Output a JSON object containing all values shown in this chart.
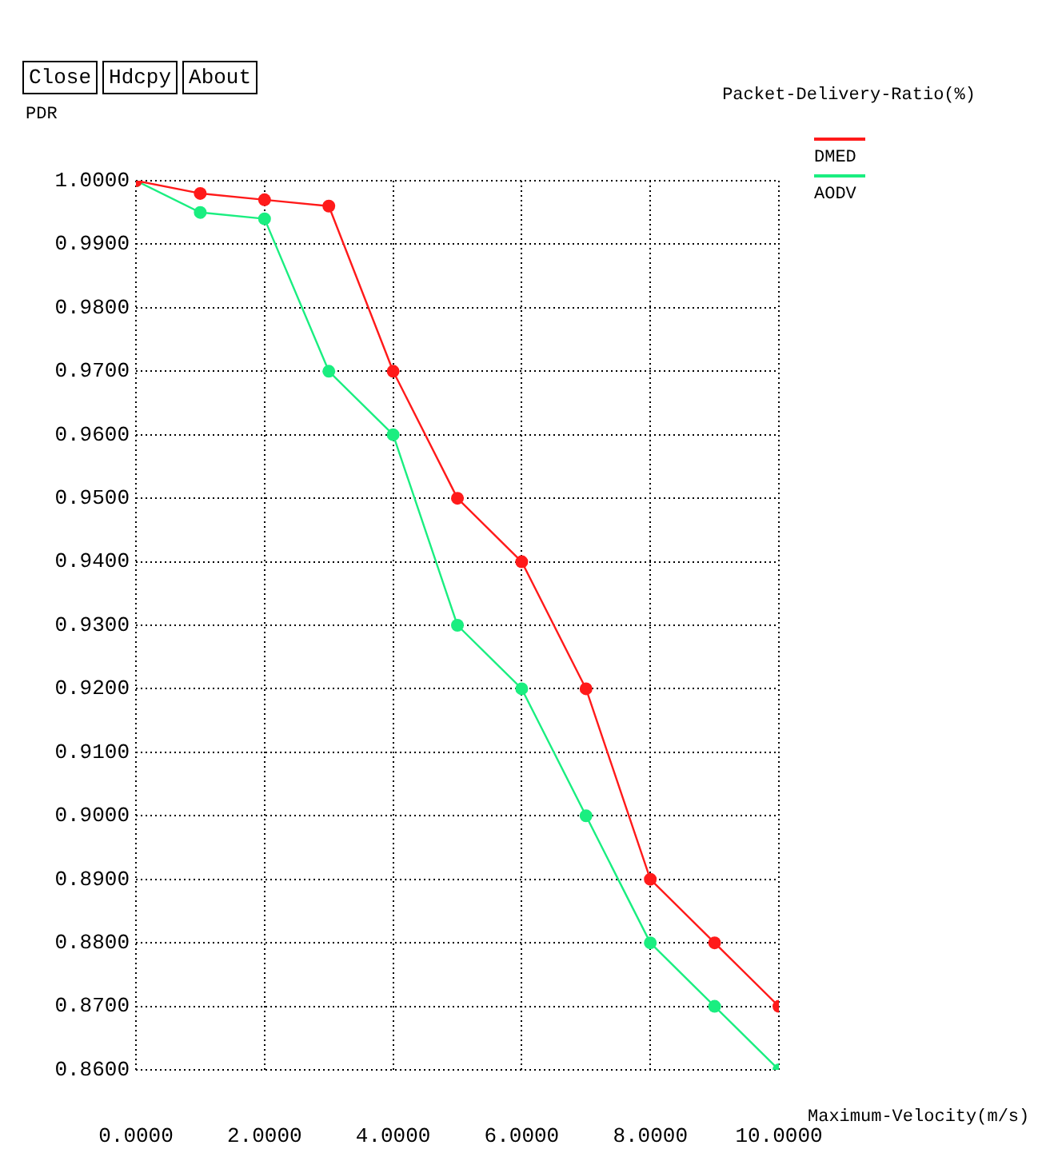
{
  "chart_data": {
    "type": "line",
    "title": "Packet-Delivery-Ratio(%)",
    "xlabel": "Maximum-Velocity(m/s)",
    "ylabel": "PDR",
    "annotations": [
      "Close",
      "Hdcpy",
      "About"
    ],
    "x": [
      0,
      1,
      2,
      3,
      4,
      5,
      6,
      7,
      8,
      9,
      10
    ],
    "series": [
      {
        "name": "DMED",
        "color": "#ff1a1a",
        "values": [
          1.0,
          0.998,
          0.997,
          0.996,
          0.97,
          0.95,
          0.94,
          0.92,
          0.89,
          0.88,
          0.87
        ]
      },
      {
        "name": "AODV",
        "color": "#1aee80",
        "values": [
          1.0,
          0.995,
          0.994,
          0.97,
          0.96,
          0.93,
          0.92,
          0.9,
          0.88,
          0.87,
          0.86
        ]
      }
    ],
    "xlim": [
      0,
      10
    ],
    "xticks": [
      {
        "value": 0,
        "label": "0.0000"
      },
      {
        "value": 2,
        "label": "2.0000"
      },
      {
        "value": 4,
        "label": "4.0000"
      },
      {
        "value": 6,
        "label": "6.0000"
      },
      {
        "value": 8,
        "label": "8.0000"
      },
      {
        "value": 10,
        "label": "10.0000"
      }
    ],
    "ylim": [
      0.86,
      1.0
    ],
    "yticks": [
      {
        "value": 0.86,
        "label": "0.8600"
      },
      {
        "value": 0.87,
        "label": "0.8700"
      },
      {
        "value": 0.88,
        "label": "0.8800"
      },
      {
        "value": 0.89,
        "label": "0.8900"
      },
      {
        "value": 0.9,
        "label": "0.9000"
      },
      {
        "value": 0.91,
        "label": "0.9100"
      },
      {
        "value": 0.92,
        "label": "0.9200"
      },
      {
        "value": 0.93,
        "label": "0.9300"
      },
      {
        "value": 0.94,
        "label": "0.9400"
      },
      {
        "value": 0.95,
        "label": "0.9500"
      },
      {
        "value": 0.96,
        "label": "0.9600"
      },
      {
        "value": 0.97,
        "label": "0.9700"
      },
      {
        "value": 0.98,
        "label": "0.9800"
      },
      {
        "value": 0.99,
        "label": "0.9900"
      },
      {
        "value": 1.0,
        "label": "1.0000"
      }
    ],
    "grid": true,
    "legend": "top right",
    "marker": "circle",
    "line_style": "solid"
  }
}
